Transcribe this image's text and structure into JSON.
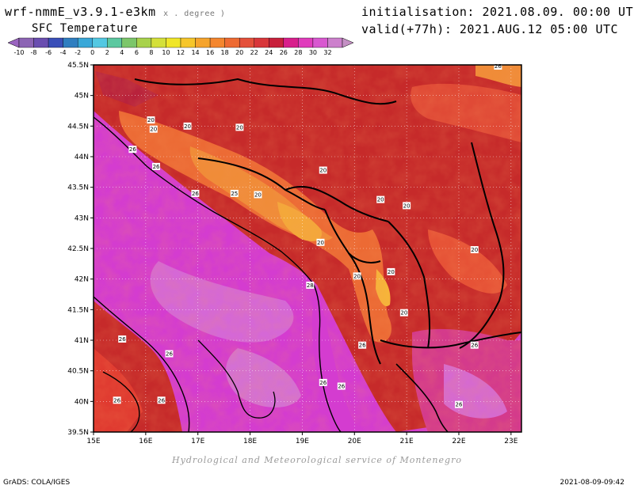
{
  "header": {
    "model": "wrf-nmmE_v3.9.1-e3km",
    "model_units": "x . degree )",
    "variable": "SFC Temperature",
    "initialisation": "initialisation: 2021.08.09. 00:00 UTC",
    "valid": "valid(+77h): 2021.AUG.12 05:00 UTC"
  },
  "colorbar": {
    "labels": [
      "-10",
      "-8",
      "-6",
      "-4",
      "-2",
      "0",
      "2",
      "4",
      "6",
      "8",
      "10",
      "12",
      "14",
      "16",
      "18",
      "20",
      "22",
      "24",
      "26",
      "28",
      "30",
      "32"
    ],
    "colors": [
      "#8c64b4",
      "#6a4eb0",
      "#3a4fb8",
      "#2f7ec0",
      "#3aa8d8",
      "#53c8e2",
      "#5cc8a0",
      "#7cc66a",
      "#a8d24c",
      "#d4e03a",
      "#f0e628",
      "#f6c62a",
      "#f6a42c",
      "#f4862e",
      "#ee6a32",
      "#e4503a",
      "#d8363a",
      "#c8203c",
      "#d81e8c",
      "#e03cbc",
      "#d858d0",
      "#cc80cc"
    ]
  },
  "map": {
    "lat_labels": [
      "45.5N",
      "45N",
      "44.5N",
      "44N",
      "43.5N",
      "43N",
      "42.5N",
      "42N",
      "41.5N",
      "41N",
      "40.5N",
      "40N",
      "39.5N"
    ],
    "lon_labels": [
      "15E",
      "16E",
      "17E",
      "18E",
      "19E",
      "20E",
      "21E",
      "22E",
      "23E"
    ],
    "contour_labels": [
      {
        "text": "20",
        "lon": 16.1,
        "lat": 44.6
      },
      {
        "text": "20",
        "lon": 16.15,
        "lat": 44.45
      },
      {
        "text": "20",
        "lon": 16.8,
        "lat": 44.5
      },
      {
        "text": "20",
        "lon": 17.8,
        "lat": 44.48
      },
      {
        "text": "26",
        "lon": 15.75,
        "lat": 44.12
      },
      {
        "text": "26",
        "lon": 16.2,
        "lat": 43.84
      },
      {
        "text": "26",
        "lon": 16.95,
        "lat": 43.4
      },
      {
        "text": "25",
        "lon": 17.7,
        "lat": 43.4
      },
      {
        "text": "20",
        "lon": 18.15,
        "lat": 43.38
      },
      {
        "text": "20",
        "lon": 19.4,
        "lat": 43.78
      },
      {
        "text": "20",
        "lon": 20.5,
        "lat": 43.3
      },
      {
        "text": "20",
        "lon": 21.0,
        "lat": 43.2
      },
      {
        "text": "20",
        "lon": 19.35,
        "lat": 42.6
      },
      {
        "text": "20",
        "lon": 22.3,
        "lat": 42.48
      },
      {
        "text": "20",
        "lon": 20.05,
        "lat": 42.05
      },
      {
        "text": "20",
        "lon": 20.7,
        "lat": 42.12
      },
      {
        "text": "28",
        "lon": 19.15,
        "lat": 41.9
      },
      {
        "text": "20",
        "lon": 20.95,
        "lat": 41.45
      },
      {
        "text": "26",
        "lon": 15.55,
        "lat": 41.02
      },
      {
        "text": "26",
        "lon": 16.45,
        "lat": 40.78
      },
      {
        "text": "26",
        "lon": 20.15,
        "lat": 40.92
      },
      {
        "text": "26",
        "lon": 22.3,
        "lat": 40.92
      },
      {
        "text": "26",
        "lon": 19.4,
        "lat": 40.31
      },
      {
        "text": "26",
        "lon": 19.75,
        "lat": 40.25
      },
      {
        "text": "26",
        "lon": 15.45,
        "lat": 40.02
      },
      {
        "text": "26",
        "lon": 16.3,
        "lat": 40.02
      },
      {
        "text": "26",
        "lon": 22.0,
        "lat": 39.95
      },
      {
        "text": "26",
        "lon": 22.75,
        "lat": 45.48
      }
    ]
  },
  "footer": {
    "credit": "Hydrological and Meteorological service of Montenegro",
    "grads": "GrADS: COLA/IGES",
    "timestamp": "2021-08-09-09:42"
  }
}
